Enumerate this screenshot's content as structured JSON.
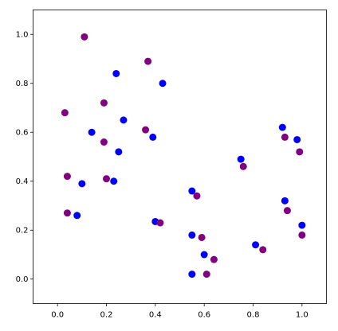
{
  "chart_data": {
    "type": "scatter",
    "series": [
      {
        "color": "#0000ff",
        "x": [
          0.24,
          0.43,
          0.27,
          0.14,
          0.39,
          0.25,
          0.1,
          0.23,
          0.08,
          0.4,
          0.75,
          0.92,
          0.98,
          0.55,
          0.93,
          1.0,
          0.55,
          0.6,
          0.81,
          0.55
        ],
        "values": [
          0.84,
          0.8,
          0.65,
          0.6,
          0.58,
          0.52,
          0.39,
          0.4,
          0.26,
          0.235,
          0.49,
          0.62,
          0.57,
          0.36,
          0.32,
          0.22,
          0.18,
          0.1,
          0.14,
          0.02
        ]
      },
      {
        "color": "#800080",
        "x": [
          0.11,
          0.37,
          0.03,
          0.19,
          0.19,
          0.36,
          0.04,
          0.2,
          0.04,
          0.42,
          0.57,
          0.76,
          0.93,
          0.99,
          0.94,
          0.59,
          0.64,
          0.84,
          0.61,
          1.0
        ],
        "values": [
          0.99,
          0.89,
          0.68,
          0.72,
          0.56,
          0.61,
          0.42,
          0.41,
          0.27,
          0.23,
          0.34,
          0.46,
          0.58,
          0.52,
          0.28,
          0.17,
          0.08,
          0.12,
          0.02,
          0.18
        ]
      }
    ],
    "xlim": [
      -0.1,
      1.1
    ],
    "ylim": [
      -0.1,
      1.1
    ],
    "xticks": [
      {
        "value": 0,
        "label": "0.0"
      },
      0.2,
      0.4,
      0.6,
      0.8,
      {
        "value": 1,
        "label": "1.0"
      }
    ],
    "yticks": [
      {
        "value": 0,
        "label": "0.0"
      },
      0.2,
      0.4,
      0.6,
      0.8,
      {
        "value": 1,
        "label": "1.0"
      }
    ]
  }
}
